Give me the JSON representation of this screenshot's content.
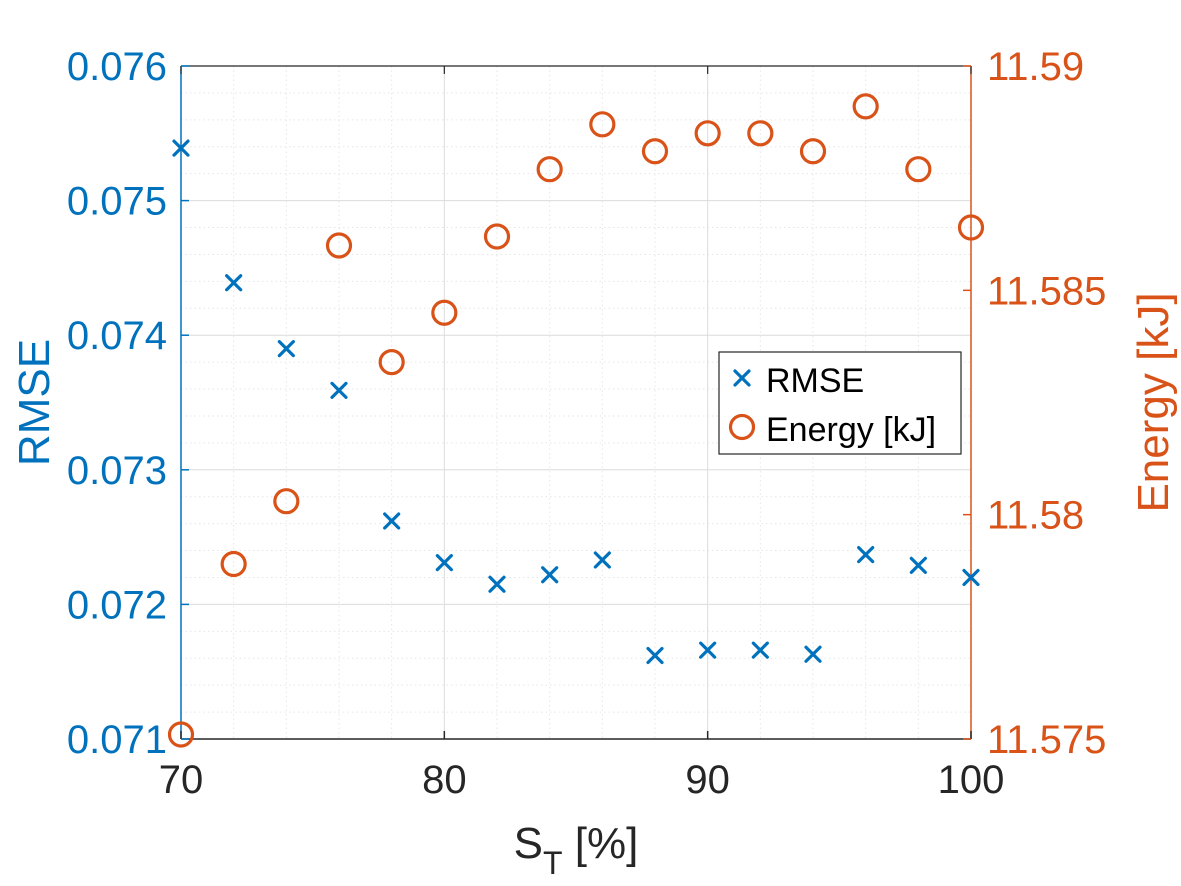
{
  "chart_data": {
    "type": "scatter",
    "title": "",
    "xlabel_main": "S",
    "xlabel_sub": "T",
    "xlabel_rest": " [%]",
    "ylabel_left": "RMSE",
    "ylabel_right": "Energy [kJ]",
    "xlim": [
      70,
      100
    ],
    "ylim_left": [
      0.071,
      0.076
    ],
    "ylim_right": [
      11.575,
      11.59
    ],
    "x_ticks": [
      70,
      80,
      90,
      100
    ],
    "x_tick_labels": [
      "70",
      "80",
      "90",
      "100"
    ],
    "y_left_ticks": [
      0.071,
      0.072,
      0.073,
      0.074,
      0.075,
      0.076
    ],
    "y_left_tick_labels": [
      "0.071",
      "0.072",
      "0.073",
      "0.074",
      "0.075",
      "0.076"
    ],
    "y_right_ticks": [
      11.575,
      11.58,
      11.585,
      11.59
    ],
    "y_right_tick_labels": [
      "11.575",
      "11.58",
      "11.585",
      "11.59"
    ],
    "grid": true,
    "minor_grid": true,
    "legend_position": "center-right",
    "colors": {
      "rmse": "#0072BD",
      "energy": "#D95319",
      "axis": "#262626"
    },
    "series": [
      {
        "name": "RMSE",
        "axis": "left",
        "marker": "x",
        "x": [
          70,
          72,
          74,
          76,
          78,
          80,
          82,
          84,
          86,
          88,
          90,
          92,
          94,
          96,
          98,
          100
        ],
        "values": [
          0.07539,
          0.07439,
          0.0739,
          0.07359,
          0.07262,
          0.07231,
          0.07215,
          0.07222,
          0.07233,
          0.07162,
          0.07166,
          0.07166,
          0.07163,
          0.07237,
          0.07229,
          0.0722
        ]
      },
      {
        "name": "Energy [kJ]",
        "axis": "right",
        "marker": "o",
        "x": [
          70,
          72,
          74,
          76,
          78,
          80,
          82,
          84,
          86,
          88,
          90,
          92,
          94,
          96,
          98,
          100
        ],
        "values": [
          11.5751,
          11.5789,
          11.5803,
          11.586,
          11.5834,
          11.5845,
          11.5862,
          11.5877,
          11.5887,
          11.5881,
          11.5885,
          11.5885,
          11.5881,
          11.5891,
          11.5877,
          11.5864
        ]
      }
    ]
  }
}
